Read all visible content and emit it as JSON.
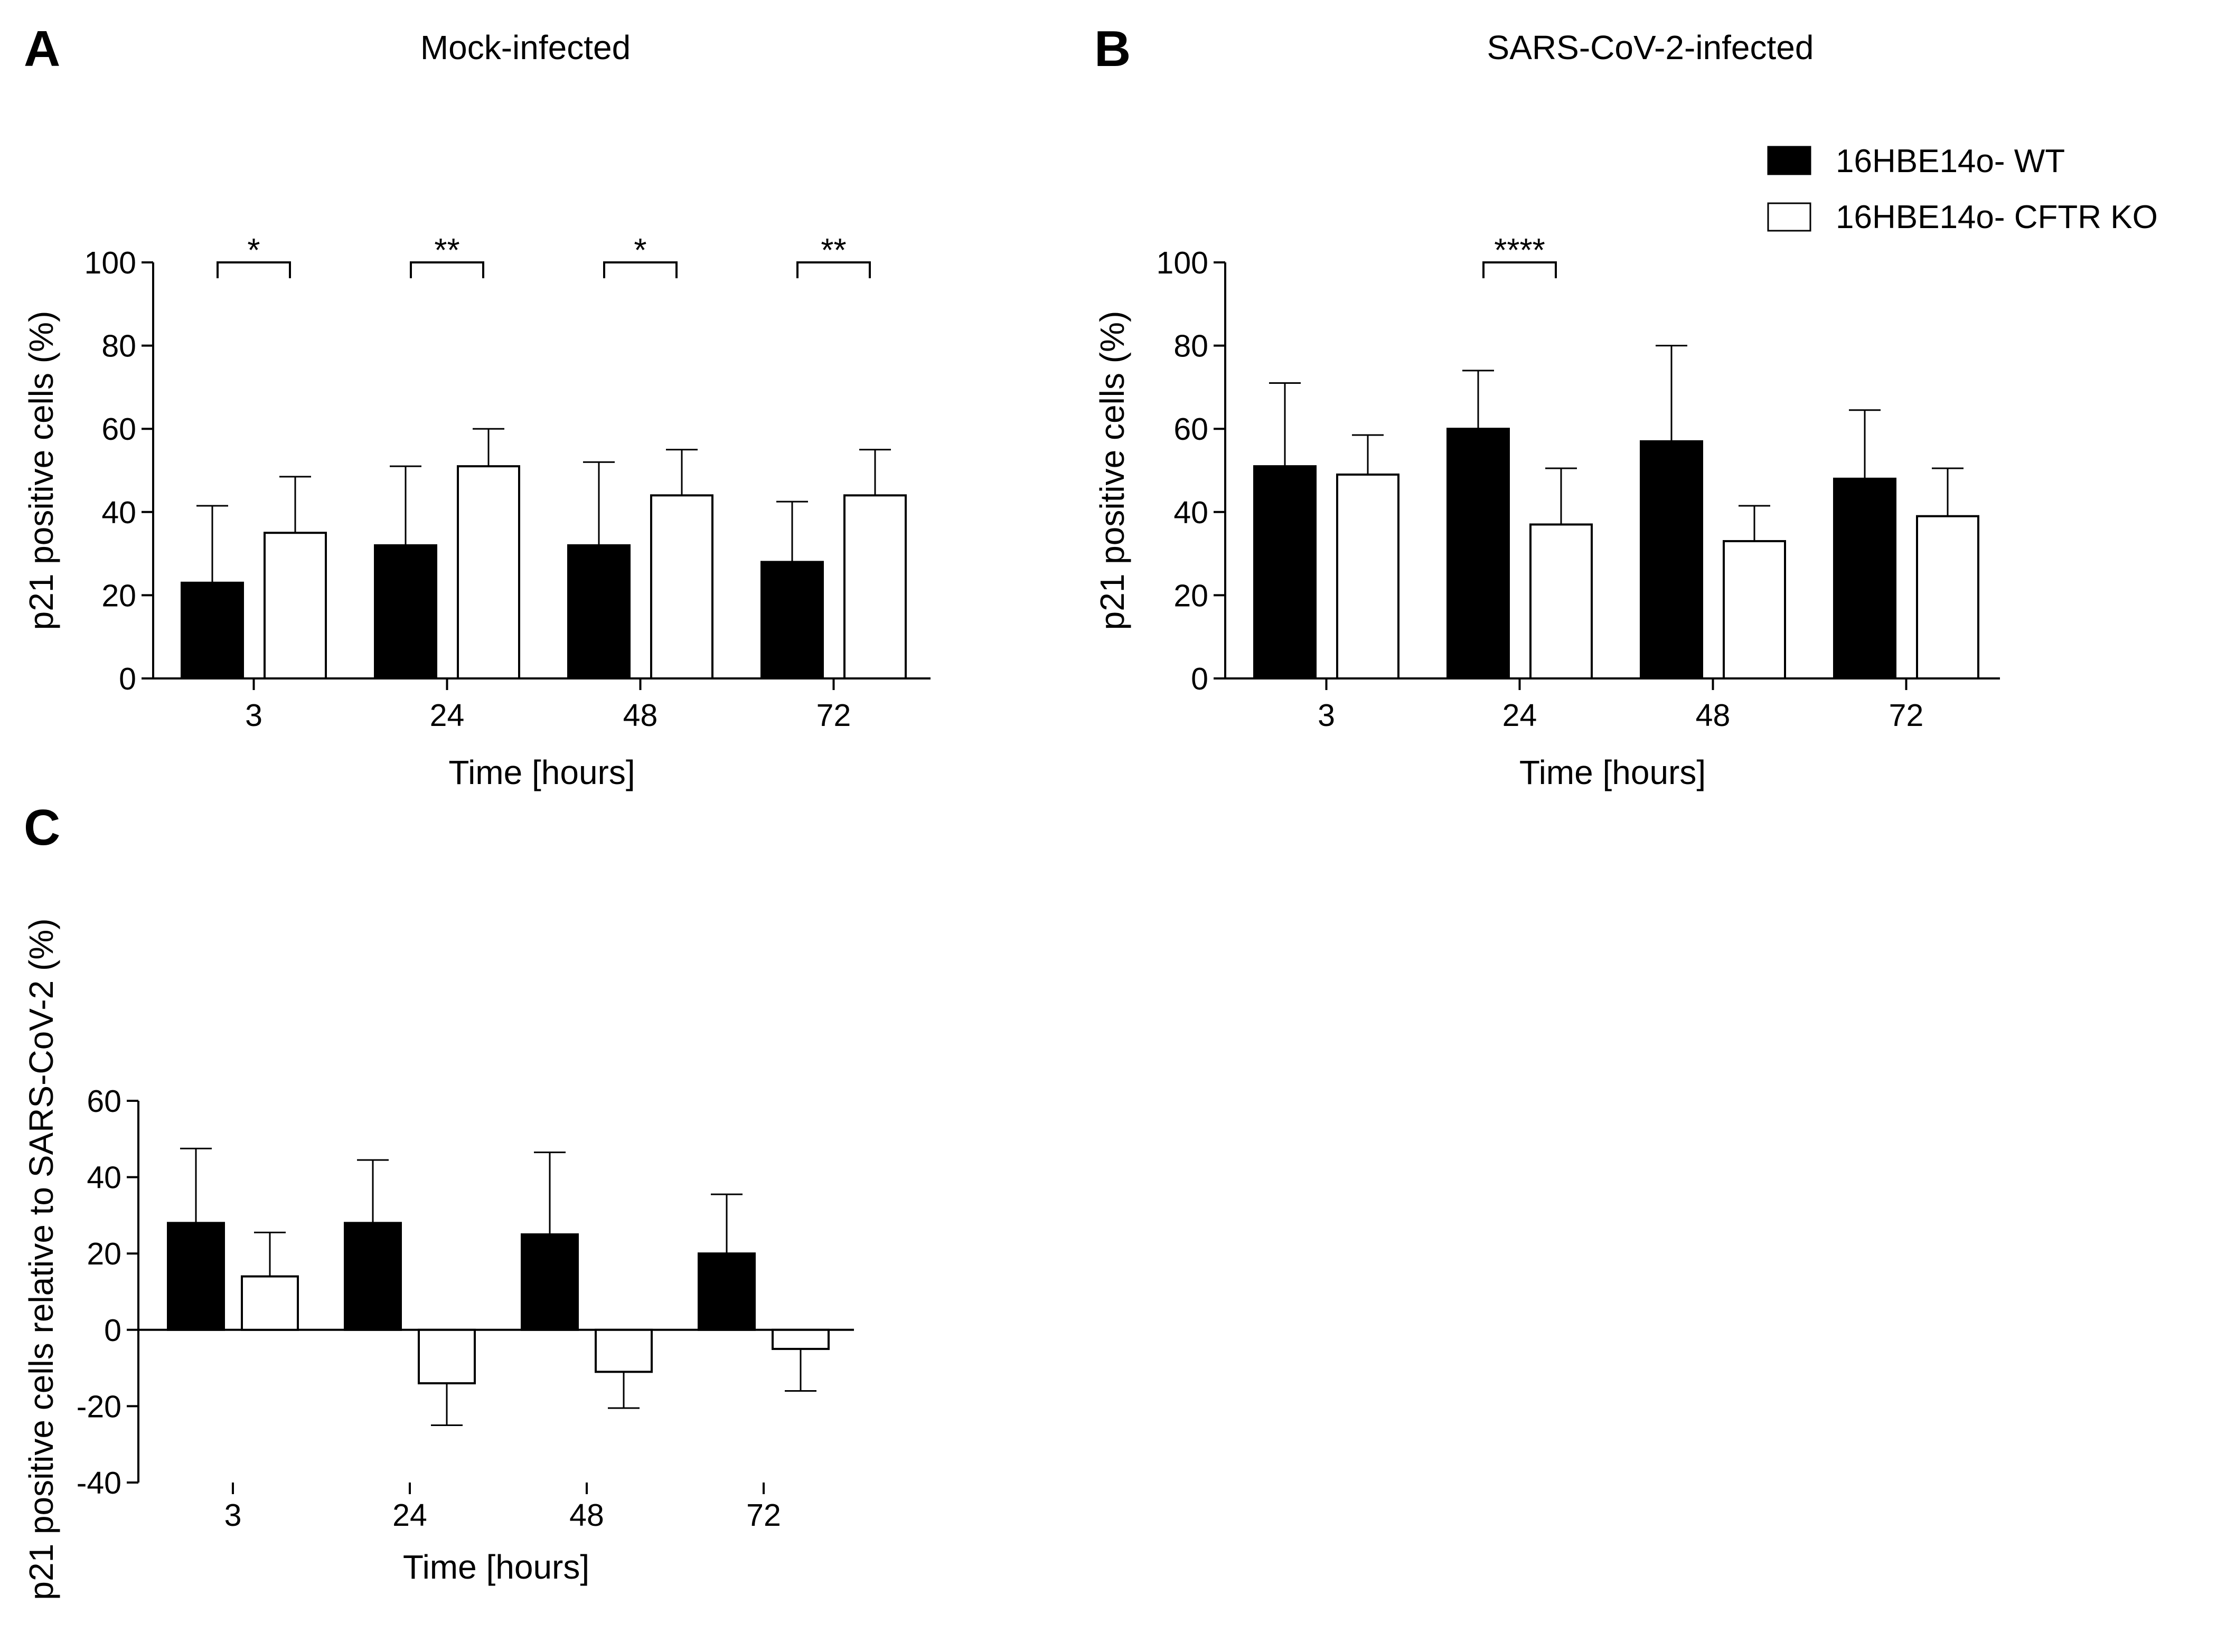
{
  "legend": {
    "items": [
      {
        "label": "16HBE14o- WT",
        "color": "#000000"
      },
      {
        "label": "16HBE14o- CFTR KO",
        "color": "#ffffff"
      }
    ]
  },
  "chart_data": [
    {
      "id": "A",
      "type": "bar",
      "panel_letter": "A",
      "title": "Mock-infected",
      "xlabel": "Time [hours]",
      "ylabel": "p21 positive cells (%)",
      "ylim": [
        0,
        100
      ],
      "yticks": [
        "0",
        "20",
        "40",
        "60",
        "80",
        "100"
      ],
      "categories": [
        "3",
        "24",
        "48",
        "72"
      ],
      "series": [
        {
          "name": "16HBE14o- WT",
          "color": "#000000",
          "values": [
            23,
            32,
            32,
            28
          ],
          "errors": [
            18.5,
            19,
            20,
            14.5
          ]
        },
        {
          "name": "16HBE14o- CFTR KO",
          "color": "#ffffff",
          "values": [
            35,
            51,
            44,
            44
          ],
          "errors": [
            13.5,
            9,
            11,
            11
          ]
        }
      ],
      "significance": [
        {
          "group": 0,
          "label": "*"
        },
        {
          "group": 1,
          "label": "**"
        },
        {
          "group": 2,
          "label": "*"
        },
        {
          "group": 3,
          "label": "**"
        }
      ]
    },
    {
      "id": "B",
      "type": "bar",
      "panel_letter": "B",
      "title": "SARS-CoV-2-infected",
      "xlabel": "Time [hours]",
      "ylabel": "p21 positive cells (%)",
      "ylim": [
        0,
        100
      ],
      "yticks": [
        "0",
        "20",
        "40",
        "60",
        "80",
        "100"
      ],
      "categories": [
        "3",
        "24",
        "48",
        "72"
      ],
      "series": [
        {
          "name": "16HBE14o- WT",
          "color": "#000000",
          "values": [
            51,
            60,
            57,
            48
          ],
          "errors": [
            20,
            14,
            23,
            16.5
          ]
        },
        {
          "name": "16HBE14o- CFTR KO",
          "color": "#ffffff",
          "values": [
            49,
            37,
            33,
            39
          ],
          "errors": [
            9.5,
            13.5,
            8.5,
            11.5
          ]
        }
      ],
      "significance": [
        {
          "group": 1,
          "label": "****"
        }
      ]
    },
    {
      "id": "C",
      "type": "bar",
      "panel_letter": "C",
      "title": "",
      "xlabel": "Time [hours]",
      "ylabel": "p21 positive cells relative to SARS-CoV-2  (%)",
      "ylim": [
        -40,
        60
      ],
      "yticks": [
        "-40",
        "-20",
        "0",
        "20",
        "40",
        "60"
      ],
      "categories": [
        "3",
        "24",
        "48",
        "72"
      ],
      "series": [
        {
          "name": "16HBE14o- WT",
          "color": "#000000",
          "values": [
            28,
            28,
            25,
            20
          ],
          "errors": [
            19.5,
            16.5,
            21.5,
            15.5
          ]
        },
        {
          "name": "16HBE14o- CFTR KO",
          "color": "#ffffff",
          "values": [
            14,
            -14,
            -11,
            -5
          ],
          "errors": [
            11.5,
            11,
            9.5,
            11
          ]
        }
      ],
      "significance": []
    }
  ]
}
